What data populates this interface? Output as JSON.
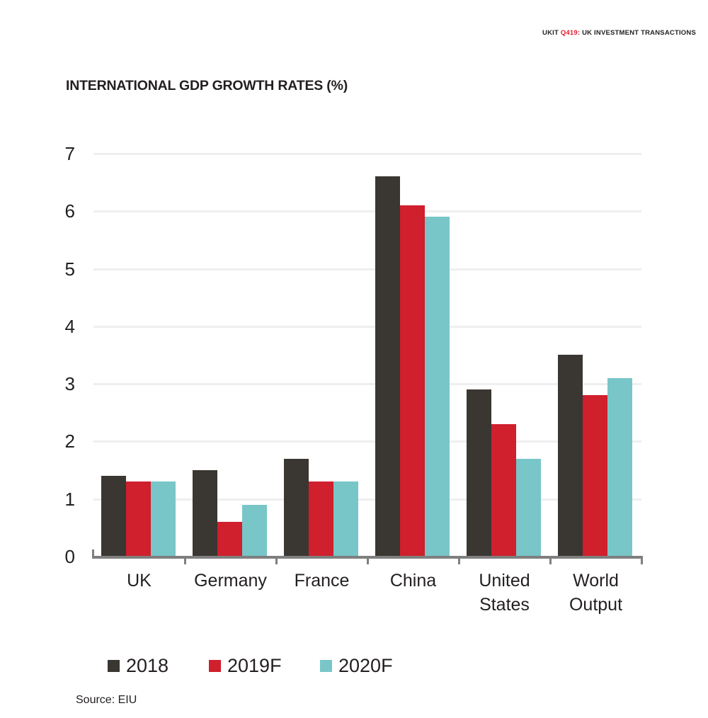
{
  "header": {
    "prefix": "UKIT ",
    "issue": "Q419:",
    "suffix": " UK INVESTMENT TRANSACTIONS"
  },
  "colors": {
    "text": "#231F20",
    "header_red": "#E31C2D",
    "axis": "#7F7F7F",
    "gridline": "#EFEFEF",
    "bar_2018": "#3A3632",
    "bar_2019f": "#D01F2D",
    "bar_2020f": "#78C6C8"
  },
  "chart_data": {
    "type": "bar",
    "title": "INTERNATIONAL GDP GROWTH RATES (%)",
    "categories": [
      "UK",
      "Germany",
      "France",
      "China",
      "United States",
      "World Output"
    ],
    "yticks": [
      0,
      1,
      2,
      3,
      4,
      5,
      6,
      7
    ],
    "ylim": [
      0,
      7
    ],
    "grid": true,
    "legend_position": "bottom",
    "series": [
      {
        "name": "2018",
        "color": "#3A3632",
        "values": [
          1.4,
          1.5,
          1.7,
          6.6,
          2.9,
          3.5
        ]
      },
      {
        "name": "2019F",
        "color": "#D01F2D",
        "values": [
          1.3,
          0.6,
          1.3,
          6.1,
          2.3,
          2.8
        ]
      },
      {
        "name": "2020F",
        "color": "#78C6C8",
        "values": [
          1.3,
          0.9,
          1.3,
          5.9,
          1.7,
          3.1
        ]
      }
    ],
    "source": "Source: EIU"
  }
}
